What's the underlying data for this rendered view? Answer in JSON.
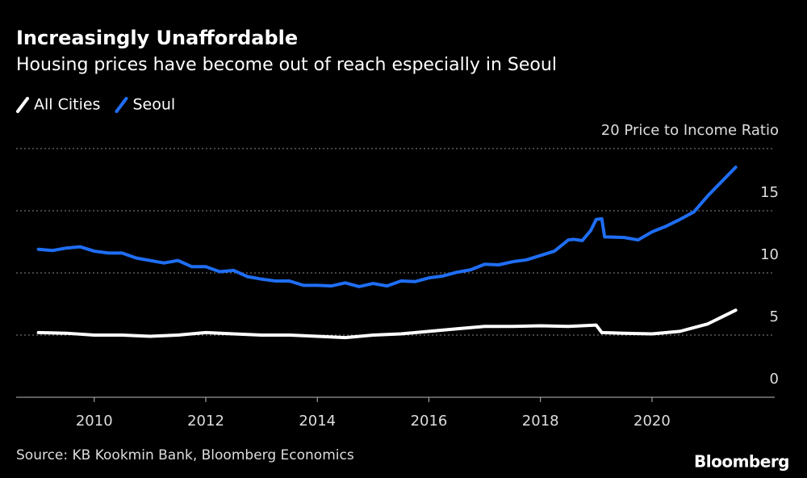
{
  "chart_data": {
    "type": "line",
    "title": "Increasingly Unaffordable",
    "subtitle": "Housing prices have become out of reach especially in Seoul",
    "source": "Source: KB Kookmin Bank, Bloomberg Economics",
    "brand": "Bloomberg",
    "xlim": [
      2008.6,
      2022.2
    ],
    "xticks": [
      2010,
      2012,
      2014,
      2016,
      2018,
      2020
    ],
    "ylim": [
      0,
      20
    ],
    "yticks": [
      0,
      5,
      10,
      15,
      {
        "value": 20,
        "label": "20 Price to Income Ratio"
      }
    ],
    "grid": true,
    "series": [
      {
        "name": "All Cities",
        "color": "#ffffff",
        "x": [
          2009,
          2009.5,
          2010,
          2010.5,
          2011,
          2011.5,
          2012,
          2012.5,
          2013,
          2013.5,
          2014,
          2014.5,
          2015,
          2015.5,
          2016,
          2016.5,
          2017,
          2017.5,
          2018,
          2018.5,
          2019,
          2019.1,
          2019.5,
          2020,
          2020.5,
          2021,
          2021.5
        ],
        "values": [
          5.2,
          5.15,
          5.0,
          5.0,
          4.9,
          5.0,
          5.2,
          5.1,
          5.0,
          5.0,
          4.9,
          4.8,
          5.0,
          5.1,
          5.3,
          5.5,
          5.7,
          5.7,
          5.75,
          5.7,
          5.8,
          5.2,
          5.15,
          5.1,
          5.3,
          5.9,
          7.0
        ]
      },
      {
        "name": "Seoul",
        "color": "#1f6ef5",
        "x": [
          2009,
          2009.25,
          2009.5,
          2009.75,
          2010,
          2010.25,
          2010.5,
          2010.75,
          2011,
          2011.25,
          2011.5,
          2011.75,
          2012,
          2012.25,
          2012.5,
          2012.75,
          2013,
          2013.25,
          2013.5,
          2013.75,
          2014,
          2014.25,
          2014.5,
          2014.75,
          2015,
          2015.25,
          2015.5,
          2015.75,
          2016,
          2016.25,
          2016.5,
          2016.75,
          2017,
          2017.25,
          2017.5,
          2017.75,
          2018,
          2018.25,
          2018.5,
          2018.6,
          2018.75,
          2018.9,
          2019,
          2019.1,
          2019.15,
          2019.5,
          2019.75,
          2020,
          2020.25,
          2020.5,
          2020.75,
          2021,
          2021.25,
          2021.5
        ],
        "values": [
          11.9,
          11.8,
          12.0,
          12.1,
          11.75,
          11.6,
          11.6,
          11.2,
          11.0,
          10.8,
          11.0,
          10.5,
          10.5,
          10.1,
          10.2,
          9.7,
          9.5,
          9.35,
          9.35,
          9.0,
          9.0,
          8.95,
          9.2,
          8.9,
          9.15,
          8.95,
          9.35,
          9.3,
          9.6,
          9.75,
          10.05,
          10.25,
          10.7,
          10.65,
          10.9,
          11.05,
          11.4,
          11.75,
          12.65,
          12.7,
          12.6,
          13.4,
          14.3,
          14.35,
          12.9,
          12.85,
          12.65,
          13.3,
          13.75,
          14.3,
          14.9,
          16.2,
          17.35,
          18.5
        ]
      }
    ]
  }
}
